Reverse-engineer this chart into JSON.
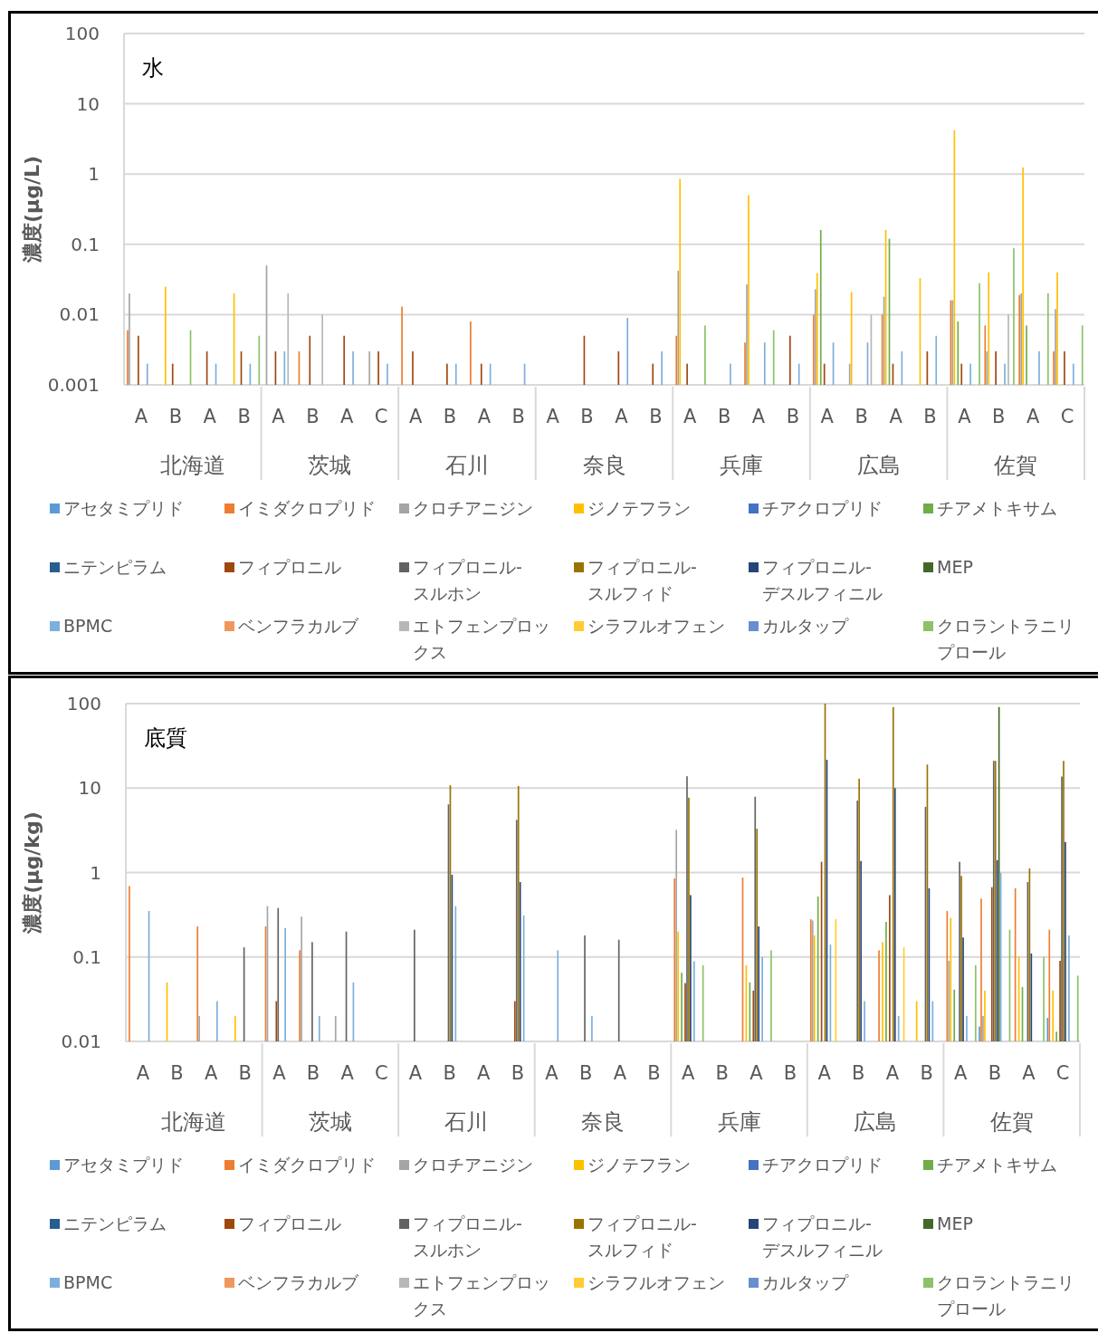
{
  "chart_data": [
    {
      "type": "bar",
      "title": "水",
      "ylabel": "濃度(μg/L)",
      "log": true,
      "grid": "y",
      "legend": "bottom",
      "ylim": [
        0.001,
        100
      ],
      "yticks": [
        0.001,
        0.01,
        0.1,
        1,
        10,
        100
      ],
      "categories": [
        "A",
        "B",
        "A",
        "B",
        "A",
        "B",
        "A",
        "C",
        "A",
        "B",
        "A",
        "B",
        "A",
        "B",
        "A",
        "B",
        "A",
        "B",
        "A",
        "B",
        "A",
        "B",
        "A",
        "B",
        "A",
        "B",
        "A",
        "C"
      ],
      "annotations": [
        "北海道",
        "茨城",
        "石川",
        "奈良",
        "兵庫",
        "広島",
        "佐賀"
      ],
      "series": [
        {
          "name": "アセタミプリド",
          "color": "#5b9bd5",
          "values": [
            null,
            null,
            null,
            null,
            null,
            null,
            null,
            null,
            null,
            null,
            null,
            null,
            null,
            null,
            null,
            null,
            null,
            null,
            null,
            null,
            null,
            null,
            null,
            null,
            null,
            null,
            null,
            null
          ]
        },
        {
          "name": "イミダクロプリド",
          "color": "#ed7d31",
          "values": [
            0.006,
            null,
            null,
            null,
            null,
            0.003,
            null,
            null,
            0.013,
            null,
            0.008,
            null,
            null,
            null,
            null,
            null,
            0.005,
            null,
            0.004,
            null,
            0.01,
            null,
            0.01,
            null,
            0.016,
            0.007,
            0.019,
            0.003
          ]
        },
        {
          "name": "クロチアニジン",
          "color": "#a5a5a5",
          "values": [
            0.02,
            null,
            null,
            null,
            0.05,
            null,
            null,
            0.003,
            null,
            null,
            null,
            null,
            null,
            null,
            null,
            null,
            0.042,
            null,
            0.027,
            null,
            0.023,
            0.002,
            0.018,
            null,
            0.016,
            0.003,
            0.02,
            0.012
          ]
        },
        {
          "name": "ジノテフラン",
          "color": "#ffc000",
          "values": [
            null,
            0.025,
            null,
            0.02,
            null,
            null,
            null,
            null,
            null,
            null,
            null,
            null,
            null,
            null,
            null,
            null,
            0.85,
            null,
            0.5,
            null,
            0.039,
            0.021,
            0.16,
            0.033,
            4.2,
            0.04,
            1.24,
            0.04
          ]
        },
        {
          "name": "チアクロプリド",
          "color": "#4472c4",
          "values": [
            null,
            null,
            null,
            null,
            null,
            null,
            null,
            null,
            null,
            null,
            null,
            null,
            null,
            null,
            null,
            null,
            null,
            null,
            null,
            null,
            null,
            null,
            null,
            null,
            null,
            null,
            null,
            null
          ]
        },
        {
          "name": "チアメトキサム",
          "color": "#70ad47",
          "values": [
            null,
            null,
            null,
            null,
            null,
            null,
            null,
            null,
            null,
            null,
            null,
            null,
            null,
            null,
            null,
            null,
            null,
            null,
            null,
            null,
            0.16,
            null,
            0.12,
            null,
            0.008,
            null,
            0.007,
            null
          ]
        },
        {
          "name": "ニテンピラム",
          "color": "#255e91",
          "values": [
            null,
            null,
            null,
            null,
            null,
            null,
            null,
            null,
            null,
            null,
            null,
            null,
            null,
            null,
            null,
            null,
            null,
            null,
            null,
            null,
            null,
            null,
            null,
            null,
            null,
            null,
            null,
            null
          ]
        },
        {
          "name": "フィプロニル",
          "color": "#9e480e",
          "values": [
            0.005,
            0.002,
            0.003,
            0.003,
            0.003,
            0.005,
            0.005,
            0.003,
            0.003,
            0.002,
            0.002,
            null,
            null,
            0.005,
            0.003,
            0.002,
            0.002,
            null,
            null,
            0.005,
            0.002,
            null,
            0.002,
            0.003,
            0.002,
            0.003,
            null,
            0.003
          ]
        },
        {
          "name": "フィプロニル-スルホン",
          "color": "#636363",
          "values": [
            null,
            null,
            null,
            null,
            null,
            null,
            null,
            null,
            null,
            null,
            null,
            null,
            null,
            null,
            null,
            null,
            null,
            null,
            null,
            null,
            null,
            null,
            null,
            null,
            null,
            null,
            null,
            null
          ]
        },
        {
          "name": "フィプロニル-スルフィド",
          "color": "#997300",
          "values": [
            null,
            null,
            null,
            null,
            null,
            null,
            null,
            null,
            null,
            null,
            null,
            null,
            null,
            null,
            null,
            null,
            null,
            null,
            null,
            null,
            null,
            null,
            null,
            null,
            null,
            null,
            null,
            null
          ]
        },
        {
          "name": "フィプロニル-デスルフィニル",
          "color": "#264478",
          "values": [
            null,
            null,
            null,
            null,
            null,
            null,
            null,
            null,
            null,
            null,
            null,
            null,
            null,
            null,
            null,
            null,
            null,
            null,
            null,
            null,
            null,
            null,
            null,
            null,
            null,
            null,
            null,
            null
          ]
        },
        {
          "name": "MEP",
          "color": "#43682b",
          "values": [
            null,
            null,
            null,
            null,
            null,
            null,
            null,
            null,
            null,
            null,
            null,
            null,
            null,
            null,
            null,
            null,
            null,
            null,
            null,
            null,
            null,
            null,
            null,
            null,
            null,
            null,
            null,
            null
          ]
        },
        {
          "name": "BPMC",
          "color": "#7cafdd",
          "values": [
            0.002,
            null,
            0.002,
            0.002,
            0.003,
            null,
            0.003,
            0.002,
            null,
            0.002,
            0.002,
            0.002,
            null,
            null,
            0.009,
            0.003,
            null,
            0.002,
            0.004,
            0.002,
            0.004,
            0.004,
            0.003,
            0.005,
            0.002,
            0.002,
            0.003,
            0.002
          ]
        },
        {
          "name": "ベンフラカルブ",
          "color": "#f1975a",
          "values": [
            null,
            null,
            null,
            null,
            null,
            null,
            null,
            null,
            null,
            null,
            null,
            null,
            null,
            null,
            null,
            null,
            null,
            null,
            null,
            null,
            null,
            null,
            null,
            null,
            null,
            null,
            null,
            null
          ]
        },
        {
          "name": "エトフェンプロックス",
          "color": "#b7b7b7",
          "values": [
            null,
            null,
            null,
            null,
            0.02,
            0.01,
            null,
            null,
            null,
            null,
            null,
            null,
            null,
            null,
            null,
            null,
            null,
            null,
            null,
            null,
            null,
            0.01,
            null,
            null,
            null,
            0.01,
            null,
            null
          ]
        },
        {
          "name": "シラフルオフェン",
          "color": "#ffcd33",
          "values": [
            null,
            null,
            null,
            null,
            null,
            null,
            null,
            null,
            null,
            null,
            null,
            null,
            null,
            null,
            null,
            null,
            null,
            null,
            null,
            null,
            null,
            null,
            null,
            null,
            null,
            null,
            null,
            null
          ]
        },
        {
          "name": "カルタップ",
          "color": "#698ed0",
          "values": [
            null,
            null,
            null,
            null,
            null,
            null,
            null,
            null,
            null,
            null,
            null,
            null,
            null,
            null,
            null,
            null,
            null,
            null,
            null,
            null,
            null,
            null,
            null,
            null,
            null,
            null,
            null,
            null
          ]
        },
        {
          "name": "クロラントラニリプロール",
          "color": "#8cc168",
          "values": [
            null,
            0.006,
            null,
            0.005,
            null,
            null,
            null,
            null,
            null,
            null,
            null,
            null,
            null,
            null,
            null,
            null,
            0.007,
            null,
            0.006,
            null,
            null,
            null,
            null,
            null,
            0.028,
            0.088,
            0.02,
            0.007
          ]
        }
      ]
    },
    {
      "type": "bar",
      "title": "底質",
      "ylabel": "濃度(μg/kg)",
      "log": true,
      "grid": "y",
      "legend": "bottom",
      "ylim": [
        0.01,
        100
      ],
      "yticks": [
        0.01,
        0.1,
        1,
        10,
        100
      ],
      "categories": [
        "A",
        "B",
        "A",
        "B",
        "A",
        "B",
        "A",
        "C",
        "A",
        "B",
        "A",
        "B",
        "A",
        "B",
        "A",
        "B",
        "A",
        "B",
        "A",
        "B",
        "A",
        "B",
        "A",
        "B",
        "A",
        "B",
        "A",
        "C"
      ],
      "annotations": [
        "北海道",
        "茨城",
        "石川",
        "奈良",
        "兵庫",
        "広島",
        "佐賀"
      ],
      "series": [
        {
          "name": "アセタミプリド",
          "color": "#5b9bd5",
          "values": [
            null,
            null,
            null,
            null,
            null,
            null,
            null,
            null,
            null,
            null,
            null,
            null,
            null,
            null,
            null,
            null,
            null,
            null,
            null,
            null,
            null,
            null,
            null,
            null,
            null,
            0.015,
            null,
            0.019
          ]
        },
        {
          "name": "イミダクロプリド",
          "color": "#ed7d31",
          "values": [
            0.69,
            null,
            0.23,
            null,
            0.23,
            0.12,
            null,
            null,
            null,
            null,
            null,
            null,
            null,
            null,
            null,
            null,
            0.85,
            null,
            0.87,
            null,
            0.28,
            null,
            0.12,
            null,
            0.35,
            0.49,
            0.65,
            0.21
          ]
        },
        {
          "name": "クロチアニジン",
          "color": "#a5a5a5",
          "values": [
            null,
            null,
            0.02,
            null,
            0.4,
            0.3,
            0.02,
            null,
            null,
            null,
            null,
            null,
            null,
            null,
            null,
            null,
            3.2,
            null,
            null,
            null,
            0.27,
            null,
            null,
            null,
            0.09,
            0.02,
            null,
            null
          ]
        },
        {
          "name": "ジノテフラン",
          "color": "#ffc000",
          "values": [
            null,
            0.05,
            null,
            0.02,
            null,
            null,
            null,
            null,
            null,
            null,
            null,
            null,
            null,
            null,
            null,
            null,
            0.2,
            null,
            0.08,
            null,
            0.18,
            null,
            0.15,
            0.03,
            0.29,
            0.04,
            0.1,
            0.04
          ]
        },
        {
          "name": "チアクロプリド",
          "color": "#4472c4",
          "values": [
            null,
            null,
            null,
            null,
            null,
            null,
            null,
            null,
            null,
            null,
            null,
            null,
            null,
            null,
            null,
            null,
            null,
            null,
            null,
            null,
            null,
            null,
            null,
            null,
            null,
            null,
            null,
            null
          ]
        },
        {
          "name": "チアメトキサム",
          "color": "#70ad47",
          "values": [
            null,
            null,
            null,
            null,
            null,
            null,
            null,
            null,
            null,
            null,
            null,
            null,
            null,
            null,
            null,
            null,
            0.065,
            null,
            0.05,
            null,
            0.52,
            null,
            0.26,
            null,
            0.041,
            null,
            0.044,
            0.013
          ]
        },
        {
          "name": "ニテンピラム",
          "color": "#255e91",
          "values": [
            null,
            null,
            null,
            null,
            null,
            null,
            null,
            null,
            null,
            null,
            null,
            null,
            null,
            null,
            null,
            null,
            null,
            null,
            null,
            null,
            null,
            null,
            null,
            null,
            null,
            null,
            null,
            null
          ]
        },
        {
          "name": "フィプロニル",
          "color": "#9e480e",
          "values": [
            null,
            null,
            null,
            null,
            0.03,
            null,
            null,
            null,
            null,
            null,
            null,
            0.03,
            null,
            null,
            null,
            null,
            0.049,
            null,
            0.04,
            null,
            1.34,
            null,
            0.54,
            null,
            null,
            0.67,
            null,
            0.09
          ]
        },
        {
          "name": "フィプロニル-スルホン",
          "color": "#636363",
          "values": [
            null,
            null,
            null,
            0.13,
            0.38,
            0.15,
            0.2,
            null,
            0.21,
            6.4,
            null,
            4.2,
            null,
            0.18,
            0.16,
            null,
            13.8,
            null,
            7.9,
            null,
            null,
            7.1,
            null,
            6.0,
            1.34,
            21,
            0.77,
            13.7
          ]
        },
        {
          "name": "フィプロニル-スルフィド",
          "color": "#997300",
          "values": [
            null,
            null,
            null,
            null,
            null,
            null,
            null,
            null,
            null,
            10.8,
            null,
            10.6,
            null,
            null,
            null,
            null,
            7.7,
            null,
            3.3,
            null,
            100,
            12.9,
            91,
            19,
            0.91,
            21,
            1.12,
            21
          ]
        },
        {
          "name": "フィプロニル-デスルフィニル",
          "color": "#264478",
          "values": [
            null,
            null,
            null,
            null,
            null,
            null,
            null,
            null,
            null,
            0.94,
            null,
            0.77,
            null,
            null,
            null,
            null,
            0.54,
            null,
            0.23,
            null,
            21.6,
            1.37,
            10,
            0.65,
            0.17,
            1.4,
            0.11,
            2.3
          ]
        },
        {
          "name": "MEP",
          "color": "#43682b",
          "values": [
            null,
            null,
            null,
            null,
            null,
            null,
            null,
            null,
            null,
            null,
            null,
            null,
            null,
            null,
            null,
            null,
            null,
            null,
            null,
            null,
            null,
            null,
            null,
            null,
            null,
            91,
            null,
            null
          ]
        },
        {
          "name": "BPMC",
          "color": "#7cafdd",
          "values": [
            0.35,
            null,
            0.03,
            null,
            0.22,
            0.02,
            0.05,
            null,
            null,
            0.4,
            null,
            0.31,
            0.12,
            0.02,
            null,
            null,
            0.089,
            null,
            0.1,
            null,
            0.14,
            0.03,
            0.02,
            0.03,
            0.02,
            0.99,
            null,
            0.18
          ]
        },
        {
          "name": "ベンフラカルブ",
          "color": "#f1975a",
          "values": [
            null,
            null,
            null,
            null,
            null,
            null,
            null,
            null,
            null,
            null,
            null,
            null,
            null,
            null,
            null,
            null,
            null,
            null,
            null,
            null,
            null,
            null,
            null,
            null,
            null,
            null,
            null,
            null
          ]
        },
        {
          "name": "エトフェンプロックス",
          "color": "#b7b7b7",
          "values": [
            null,
            null,
            null,
            null,
            null,
            null,
            null,
            null,
            null,
            null,
            null,
            null,
            null,
            null,
            null,
            null,
            null,
            null,
            null,
            null,
            null,
            null,
            null,
            null,
            null,
            null,
            null,
            null
          ]
        },
        {
          "name": "シラフルオフェン",
          "color": "#ffcd33",
          "values": [
            null,
            null,
            null,
            null,
            null,
            null,
            null,
            null,
            null,
            null,
            null,
            null,
            null,
            null,
            null,
            null,
            null,
            null,
            null,
            null,
            0.28,
            null,
            0.13,
            null,
            null,
            null,
            null,
            null
          ]
        },
        {
          "name": "カルタップ",
          "color": "#698ed0",
          "values": [
            null,
            null,
            null,
            null,
            null,
            null,
            null,
            null,
            null,
            null,
            null,
            null,
            null,
            null,
            null,
            null,
            null,
            null,
            null,
            null,
            null,
            null,
            null,
            null,
            null,
            null,
            null,
            null
          ]
        },
        {
          "name": "クロラントラニリプロール",
          "color": "#8cc168",
          "values": [
            null,
            null,
            null,
            null,
            null,
            null,
            null,
            null,
            null,
            null,
            null,
            null,
            null,
            null,
            null,
            null,
            0.08,
            null,
            0.12,
            null,
            null,
            null,
            null,
            null,
            0.08,
            0.21,
            0.1,
            0.06
          ]
        }
      ]
    }
  ]
}
